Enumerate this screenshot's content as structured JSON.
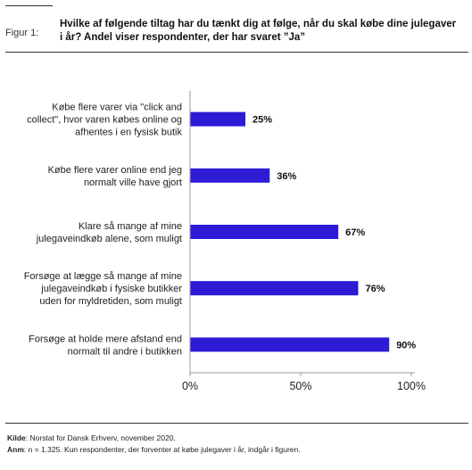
{
  "figure": {
    "label": "Figur 1:",
    "title": "Hvilke af følgende tiltag har du tænkt dig at følge, når du skal købe dine julegaver i år? Andel viser respondenter, der har svaret ”Ja”"
  },
  "chart_data": {
    "type": "bar",
    "orientation": "horizontal",
    "categories": [
      "Købe flere varer via \"click and collect\", hvor varen købes online og afhentes i en fysisk butik",
      "Købe flere varer online end jeg normalt ville have gjort",
      "Klare så mange af mine julegaveindkøb alene, som muligt",
      "Forsøge at lægge så mange af mine julegaveindkøb i fysiske butikker uden for myldretiden, som muligt",
      "Forsøge at holde mere afstand end normalt til andre i butikken"
    ],
    "category_lines": [
      [
        "Købe flere varer via \"click and",
        "collect\", hvor varen købes online og",
        "afhentes i en fysisk butik"
      ],
      [
        "Købe flere varer online end jeg",
        "normalt ville have gjort"
      ],
      [
        "Klare så mange af mine",
        "julegaveindkøb alene, som muligt"
      ],
      [
        "Forsøge at lægge så mange af mine",
        "julegaveindkøb i fysiske butikker",
        "uden for myldretiden, som muligt"
      ],
      [
        "Forsøge at holde mere afstand end",
        "normalt til andre i butikken"
      ]
    ],
    "values": [
      25,
      36,
      67,
      76,
      90
    ],
    "data_labels": [
      "25%",
      "36%",
      "67%",
      "76%",
      "90%"
    ],
    "xlim": [
      0,
      100
    ],
    "x_ticks": [
      0,
      50,
      100
    ],
    "x_tick_labels": [
      "0%",
      "50%",
      "100%"
    ],
    "grid": false,
    "bar_color": "#2d1bd6"
  },
  "footer": {
    "source_label": "Kilde",
    "source_text": ": Norstat for Dansk Erhverv, november 2020.",
    "note_label": "Anm",
    "note_text": ": n = 1.325. Kun respondenter, der forventer at købe julegaver i år, indgår i figuren."
  }
}
